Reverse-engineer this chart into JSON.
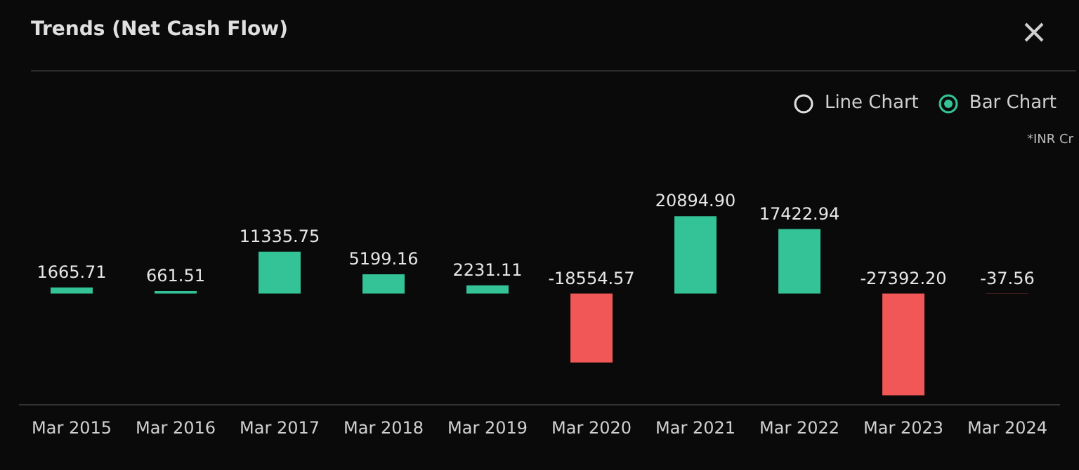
{
  "chart_data": {
    "type": "bar",
    "title": "Trends (Net Cash Flow)",
    "categories": [
      "Mar 2015",
      "Mar 2016",
      "Mar 2017",
      "Mar 2018",
      "Mar 2019",
      "Mar 2020",
      "Mar 2021",
      "Mar 2022",
      "Mar 2023",
      "Mar 2024"
    ],
    "values": [
      1665.71,
      661.51,
      11335.75,
      5199.16,
      2231.11,
      -18554.57,
      20894.9,
      17422.94,
      -27392.2,
      -37.56
    ],
    "value_labels": [
      "1665.71",
      "661.51",
      "11335.75",
      "5199.16",
      "2231.11",
      "-18554.57",
      "20894.90",
      "17422.94",
      "-27392.20",
      "-37.56"
    ],
    "colors": [
      "#34c396",
      "#34c396",
      "#34c396",
      "#34c396",
      "#34c396",
      "#f25757",
      "#34c396",
      "#34c396",
      "#f25757",
      "#f25757"
    ],
    "annotations": [
      "Line Chart",
      "Bar Chart",
      "*INR Cr"
    ],
    "legend": false
  }
}
